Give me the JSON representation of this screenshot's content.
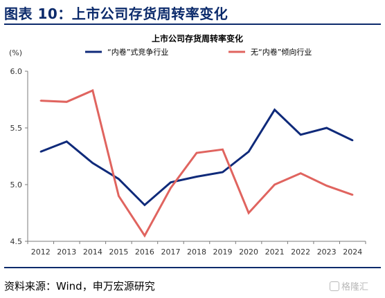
{
  "figure_title": "图表 10：上市公司存货周转率变化",
  "source": "资料来源：Wind，申万宏源研究",
  "watermark": "格隆汇",
  "colors": {
    "heading": "#0b2a6b",
    "series_involution": "#0f2a7a",
    "series_non_involution": "#e0645f",
    "axis": "#7a7a7a"
  },
  "chart_data": {
    "type": "line",
    "title": "上市公司存货周转率变化",
    "ylabel": "(%)",
    "xlabel": "",
    "x": [
      "2012",
      "2013",
      "2014",
      "2015",
      "2016",
      "2017",
      "2018",
      "2019",
      "2020",
      "2021",
      "2022",
      "2023",
      "2024"
    ],
    "ylim": [
      4.5,
      6.0
    ],
    "yticks": [
      "4.5",
      "5.0",
      "5.5",
      "6.0"
    ],
    "grid": false,
    "legend_position": "top",
    "series": [
      {
        "name": "“内卷”式竞争行业",
        "color": "#0f2a7a",
        "values": [
          5.29,
          5.38,
          5.19,
          5.05,
          4.82,
          5.02,
          5.07,
          5.11,
          5.29,
          5.66,
          5.44,
          5.5,
          5.39
        ]
      },
      {
        "name": "无“内卷”倾向行业",
        "color": "#e0645f",
        "values": [
          5.74,
          5.73,
          5.83,
          4.9,
          4.55,
          4.97,
          5.28,
          5.31,
          4.75,
          5.0,
          5.1,
          4.99,
          4.91
        ]
      }
    ]
  }
}
